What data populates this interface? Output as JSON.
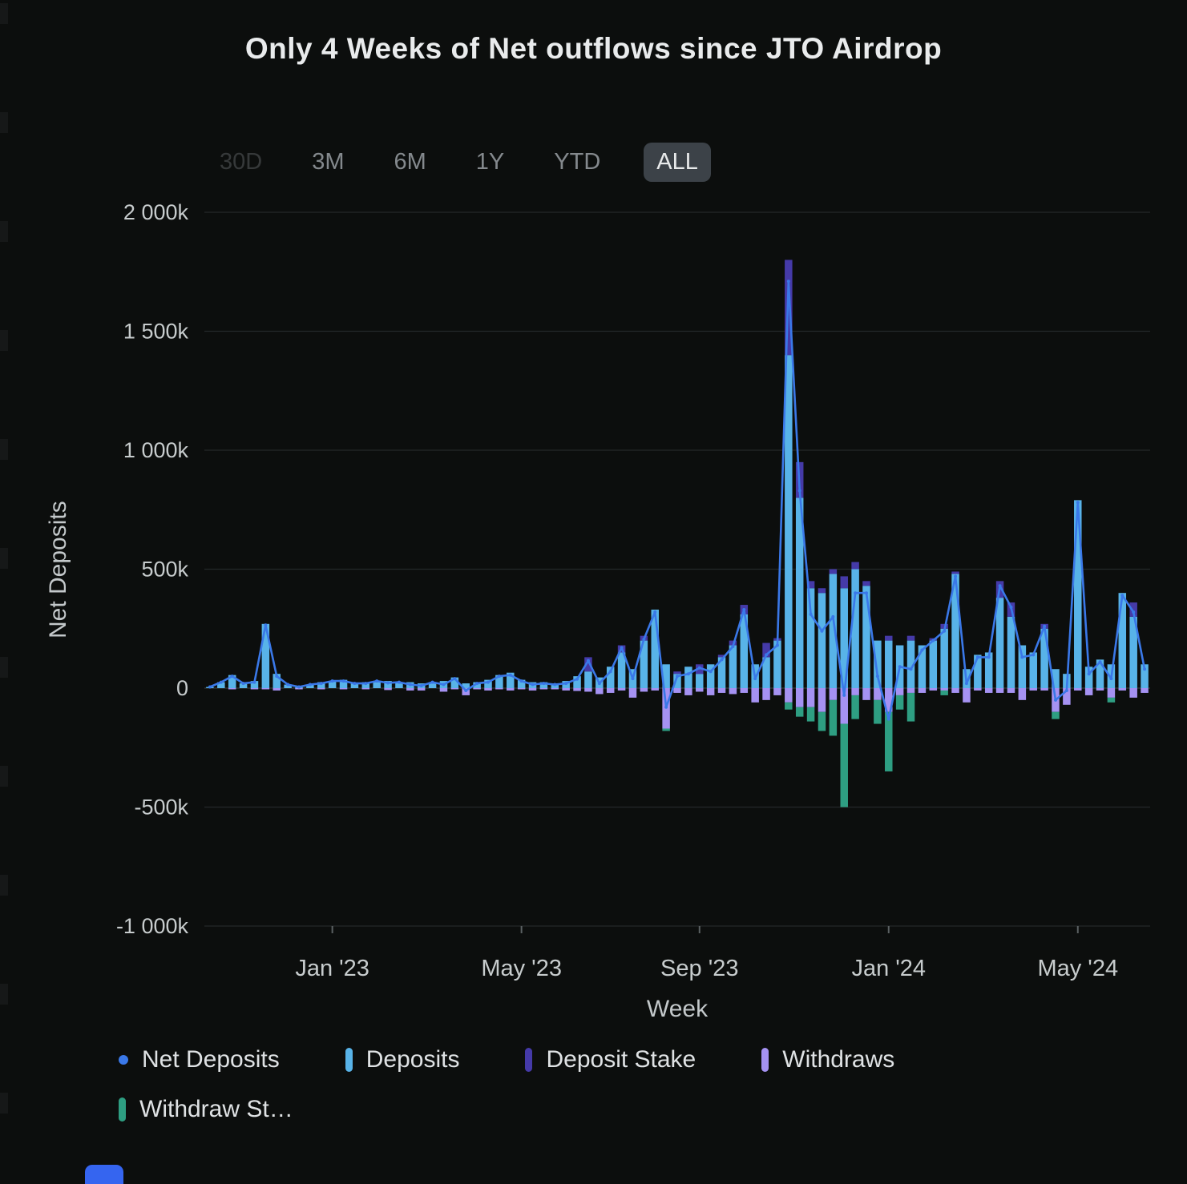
{
  "page": {
    "background": "#0c0e0d"
  },
  "title": "Only 4 Weeks of Net outflows since JTO Airdrop",
  "ranges": {
    "items": [
      {
        "label": "30D"
      },
      {
        "label": "3M"
      },
      {
        "label": "6M"
      },
      {
        "label": "1Y"
      },
      {
        "label": "YTD"
      },
      {
        "label": "ALL"
      }
    ],
    "selected": "ALL"
  },
  "axes": {
    "y_title": "Net Deposits",
    "x_title": "Week"
  },
  "legend": {
    "items": [
      {
        "label": "Net Deposits",
        "color": "#3a78e8",
        "marker": "dot"
      },
      {
        "label": "Deposits",
        "color": "#58b3e8",
        "marker": "bar"
      },
      {
        "label": "Deposit Stake",
        "color": "#453aa8",
        "marker": "bar"
      },
      {
        "label": "Withdraws",
        "color": "#a592f2",
        "marker": "bar"
      },
      {
        "label": "Withdraw St…",
        "color": "#2e9e82",
        "marker": "bar"
      }
    ]
  },
  "chart_data": {
    "type": "bar",
    "subtype": "weekly stacked bars (positive: Deposits + Deposit Stake, negative: Withdraws + Withdraw Stake) with Net Deposits line overlay",
    "title": "Only 4 Weeks of Net outflows since JTO Airdrop",
    "xlabel": "Week",
    "ylabel": "Net Deposits",
    "unit": "k (thousands)",
    "grid": true,
    "legend_position": "bottom",
    "ylim_k": [
      -1000,
      2000
    ],
    "yticks": [
      {
        "value_k": 2000,
        "label": "2 000k"
      },
      {
        "value_k": 1500,
        "label": "1 500k"
      },
      {
        "value_k": 1000,
        "label": "1 000k"
      },
      {
        "value_k": 500,
        "label": "500k"
      },
      {
        "value_k": 0,
        "label": "0"
      },
      {
        "value_k": -500,
        "label": "-500k"
      },
      {
        "value_k": -1000,
        "label": "-1 000k"
      }
    ],
    "num_weeks": 85,
    "xticks": [
      {
        "week_index": 11,
        "label": "Jan '23"
      },
      {
        "week_index": 28,
        "label": "May '23"
      },
      {
        "week_index": 44,
        "label": "Sep '23"
      },
      {
        "week_index": 61,
        "label": "Jan '24"
      },
      {
        "week_index": 78,
        "label": "May '24"
      }
    ],
    "series": [
      {
        "name": "Deposits",
        "role": "bar",
        "color": "#58b3e8",
        "values_k": [
          5,
          25,
          55,
          20,
          30,
          270,
          60,
          15,
          10,
          15,
          25,
          30,
          35,
          20,
          25,
          30,
          30,
          25,
          25,
          20,
          25,
          30,
          45,
          20,
          25,
          35,
          55,
          65,
          35,
          25,
          25,
          20,
          30,
          50,
          70,
          45,
          90,
          150,
          80,
          200,
          330,
          100,
          60,
          90,
          60,
          100,
          130,
          180,
          310,
          100,
          130,
          200,
          1400,
          800,
          420,
          400,
          480,
          420,
          500,
          430,
          200,
          200,
          180,
          200,
          180,
          200,
          250,
          480,
          80,
          140,
          150,
          380,
          300,
          180,
          150,
          250,
          80,
          60,
          790,
          90,
          120,
          100,
          400,
          300,
          100
        ]
      },
      {
        "name": "Deposit Stake",
        "role": "bar",
        "color": "#453aa8",
        "values_k": [
          0,
          0,
          0,
          0,
          0,
          0,
          0,
          0,
          0,
          0,
          0,
          0,
          0,
          0,
          0,
          0,
          0,
          0,
          0,
          0,
          0,
          0,
          0,
          0,
          0,
          0,
          0,
          0,
          0,
          0,
          0,
          0,
          0,
          0,
          60,
          0,
          0,
          30,
          0,
          20,
          0,
          0,
          10,
          0,
          40,
          0,
          10,
          20,
          40,
          0,
          60,
          10,
          400,
          150,
          30,
          20,
          20,
          50,
          30,
          20,
          0,
          20,
          0,
          20,
          0,
          10,
          20,
          10,
          0,
          0,
          0,
          70,
          60,
          0,
          0,
          20,
          0,
          0,
          0,
          0,
          0,
          0,
          0,
          60,
          0
        ]
      },
      {
        "name": "Withdraws",
        "role": "bar",
        "color": "#a592f2",
        "values_k": [
          0,
          0,
          -5,
          0,
          -5,
          -5,
          -10,
          0,
          -5,
          0,
          -5,
          0,
          -5,
          0,
          -5,
          0,
          -8,
          0,
          -10,
          -10,
          0,
          -15,
          -5,
          -30,
          -5,
          -10,
          -5,
          -10,
          -5,
          -10,
          -5,
          -5,
          -10,
          -12,
          -15,
          -25,
          -20,
          -10,
          -40,
          -15,
          -10,
          -170,
          -20,
          -30,
          -15,
          -30,
          -20,
          -25,
          -20,
          -60,
          -50,
          -30,
          -60,
          -80,
          -80,
          -100,
          -50,
          -150,
          -30,
          -50,
          -50,
          -100,
          -30,
          -20,
          -20,
          -10,
          -10,
          -20,
          -60,
          -10,
          -20,
          -20,
          -20,
          -50,
          -10,
          -10,
          -100,
          -70,
          -10,
          -30,
          -10,
          -40,
          -10,
          -40,
          -20
        ]
      },
      {
        "name": "Withdraw Stake",
        "role": "bar",
        "color": "#2e9e82",
        "values_k": [
          0,
          0,
          0,
          0,
          0,
          0,
          0,
          0,
          0,
          0,
          0,
          0,
          0,
          0,
          0,
          0,
          0,
          0,
          0,
          0,
          0,
          0,
          0,
          0,
          0,
          0,
          0,
          0,
          0,
          0,
          0,
          0,
          0,
          0,
          0,
          0,
          0,
          0,
          0,
          0,
          0,
          -10,
          0,
          0,
          0,
          0,
          0,
          0,
          0,
          0,
          0,
          0,
          -30,
          -40,
          -60,
          -80,
          -150,
          -350,
          -100,
          0,
          -100,
          -250,
          -60,
          -120,
          0,
          0,
          -20,
          0,
          0,
          0,
          0,
          0,
          0,
          0,
          0,
          0,
          -30,
          0,
          0,
          0,
          0,
          -20,
          0,
          0,
          0
        ]
      },
      {
        "name": "Net Deposits",
        "role": "line",
        "color": "#3a78e8",
        "values_k": [
          5,
          25,
          50,
          20,
          25,
          265,
          50,
          15,
          5,
          15,
          20,
          30,
          30,
          20,
          20,
          30,
          22,
          25,
          15,
          10,
          25,
          15,
          40,
          -10,
          20,
          25,
          50,
          55,
          30,
          15,
          20,
          15,
          20,
          38,
          115,
          20,
          70,
          170,
          40,
          205,
          320,
          -80,
          50,
          60,
          85,
          70,
          120,
          175,
          330,
          40,
          140,
          180,
          1710,
          830,
          310,
          240,
          300,
          -30,
          400,
          400,
          50,
          -130,
          90,
          80,
          160,
          200,
          240,
          470,
          20,
          130,
          130,
          430,
          340,
          130,
          140,
          260,
          -50,
          -10,
          780,
          60,
          110,
          40,
          390,
          320,
          80
        ]
      }
    ]
  }
}
